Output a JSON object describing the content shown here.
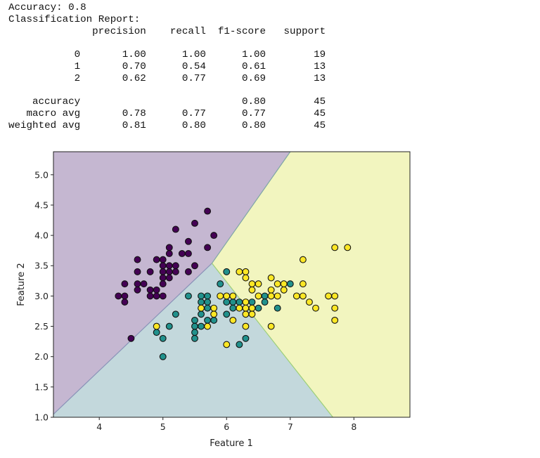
{
  "accuracy_line": "Accuracy: 0.8",
  "report_title": "Classification Report:",
  "report": {
    "headers": [
      "precision",
      "recall",
      "f1-score",
      "support"
    ],
    "class_rows": [
      {
        "label": "0",
        "precision": "1.00",
        "recall": "1.00",
        "f1": "1.00",
        "support": "19"
      },
      {
        "label": "1",
        "precision": "0.70",
        "recall": "0.54",
        "f1": "0.61",
        "support": "13"
      },
      {
        "label": "2",
        "precision": "0.62",
        "recall": "0.77",
        "f1": "0.69",
        "support": "13"
      }
    ],
    "summary_rows": [
      {
        "label": "accuracy",
        "precision": "",
        "recall": "",
        "f1": "0.80",
        "support": "45"
      },
      {
        "label": "macro avg",
        "precision": "0.78",
        "recall": "0.77",
        "f1": "0.77",
        "support": "45"
      },
      {
        "label": "weighted avg",
        "precision": "0.81",
        "recall": "0.80",
        "f1": "0.80",
        "support": "45"
      }
    ]
  },
  "chart_data": {
    "type": "scatter",
    "subtype": "decision-boundary",
    "xlabel": "Feature 1",
    "ylabel": "Feature 2",
    "xlim": [
      3.28,
      8.88
    ],
    "ylim": [
      1.0,
      5.38
    ],
    "xticks": [
      "4",
      "5",
      "6",
      "7",
      "8"
    ],
    "yticks": [
      "1.0",
      "1.5",
      "2.0",
      "2.5",
      "3.0",
      "3.5",
      "4.0",
      "4.5",
      "5.0"
    ],
    "grid": false,
    "colormap": "viridis",
    "class_colors": [
      "#440154",
      "#21918c",
      "#fde725"
    ],
    "region_colors": [
      "#c5b7d1",
      "#c3d8dc",
      "#f2f5bf"
    ],
    "classes": [
      {
        "class": 0,
        "points": [
          [
            5.7,
            4.4
          ],
          [
            5.5,
            4.2
          ],
          [
            5.2,
            4.1
          ],
          [
            5.8,
            4.0
          ],
          [
            5.4,
            3.9
          ],
          [
            5.7,
            3.8
          ],
          [
            5.1,
            3.8
          ],
          [
            5.1,
            3.7
          ],
          [
            5.3,
            3.7
          ],
          [
            5.4,
            3.7
          ],
          [
            4.6,
            3.6
          ],
          [
            4.9,
            3.6
          ],
          [
            5.0,
            3.6
          ],
          [
            5.5,
            3.5
          ],
          [
            5.0,
            3.5
          ],
          [
            5.1,
            3.5
          ],
          [
            5.2,
            3.5
          ],
          [
            4.6,
            3.4
          ],
          [
            4.8,
            3.4
          ],
          [
            5.0,
            3.4
          ],
          [
            5.1,
            3.4
          ],
          [
            5.2,
            3.4
          ],
          [
            5.4,
            3.4
          ],
          [
            5.0,
            3.3
          ],
          [
            5.1,
            3.3
          ],
          [
            4.4,
            3.2
          ],
          [
            4.6,
            3.2
          ],
          [
            4.7,
            3.2
          ],
          [
            5.0,
            3.2
          ],
          [
            4.6,
            3.1
          ],
          [
            4.8,
            3.1
          ],
          [
            4.9,
            3.1
          ],
          [
            4.3,
            3.0
          ],
          [
            4.4,
            3.0
          ],
          [
            4.8,
            3.0
          ],
          [
            4.9,
            3.0
          ],
          [
            5.0,
            3.0
          ],
          [
            4.4,
            2.9
          ],
          [
            4.5,
            2.3
          ]
        ]
      },
      {
        "class": 1,
        "points": [
          [
            6.0,
            3.4
          ],
          [
            5.9,
            3.2
          ],
          [
            5.4,
            3.0
          ],
          [
            5.6,
            3.0
          ],
          [
            5.7,
            3.0
          ],
          [
            5.6,
            2.9
          ],
          [
            5.7,
            2.9
          ],
          [
            5.7,
            2.8
          ],
          [
            5.6,
            2.7
          ],
          [
            5.2,
            2.7
          ],
          [
            5.5,
            2.6
          ],
          [
            5.7,
            2.6
          ],
          [
            5.8,
            2.6
          ],
          [
            5.1,
            2.5
          ],
          [
            5.5,
            2.5
          ],
          [
            5.6,
            2.5
          ],
          [
            4.9,
            2.4
          ],
          [
            5.5,
            2.4
          ],
          [
            5.0,
            2.3
          ],
          [
            5.5,
            2.3
          ],
          [
            5.0,
            2.0
          ],
          [
            6.0,
            2.9
          ],
          [
            6.1,
            2.9
          ],
          [
            6.2,
            2.9
          ],
          [
            6.4,
            2.9
          ],
          [
            6.6,
            3.0
          ],
          [
            6.6,
            2.9
          ],
          [
            7.0,
            3.2
          ],
          [
            6.1,
            2.8
          ],
          [
            6.5,
            2.8
          ],
          [
            6.8,
            2.8
          ],
          [
            6.0,
            2.7
          ],
          [
            6.3,
            2.3
          ],
          [
            6.2,
            2.2
          ]
        ]
      },
      {
        "class": 2,
        "points": [
          [
            7.7,
            3.8
          ],
          [
            7.9,
            3.8
          ],
          [
            7.2,
            3.6
          ],
          [
            6.2,
            3.4
          ],
          [
            6.3,
            3.4
          ],
          [
            6.3,
            3.3
          ],
          [
            6.7,
            3.3
          ],
          [
            6.4,
            3.2
          ],
          [
            6.5,
            3.2
          ],
          [
            6.8,
            3.2
          ],
          [
            6.9,
            3.2
          ],
          [
            7.2,
            3.2
          ],
          [
            6.4,
            3.1
          ],
          [
            6.7,
            3.1
          ],
          [
            6.9,
            3.1
          ],
          [
            5.9,
            3.0
          ],
          [
            6.0,
            3.0
          ],
          [
            6.1,
            3.0
          ],
          [
            6.5,
            3.0
          ],
          [
            6.7,
            3.0
          ],
          [
            6.8,
            3.0
          ],
          [
            7.1,
            3.0
          ],
          [
            7.2,
            3.0
          ],
          [
            7.6,
            3.0
          ],
          [
            7.7,
            3.0
          ],
          [
            7.3,
            2.9
          ],
          [
            6.3,
            2.9
          ],
          [
            6.2,
            2.8
          ],
          [
            6.3,
            2.8
          ],
          [
            6.4,
            2.8
          ],
          [
            7.4,
            2.8
          ],
          [
            7.7,
            2.8
          ],
          [
            6.3,
            2.7
          ],
          [
            6.4,
            2.7
          ],
          [
            6.1,
            2.6
          ],
          [
            7.7,
            2.6
          ],
          [
            6.3,
            2.5
          ],
          [
            6.7,
            2.5
          ],
          [
            6.0,
            2.2
          ],
          [
            4.9,
            2.5
          ],
          [
            5.6,
            2.8
          ],
          [
            5.8,
            2.8
          ],
          [
            5.8,
            2.7
          ],
          [
            5.7,
            2.5
          ]
        ]
      }
    ]
  }
}
